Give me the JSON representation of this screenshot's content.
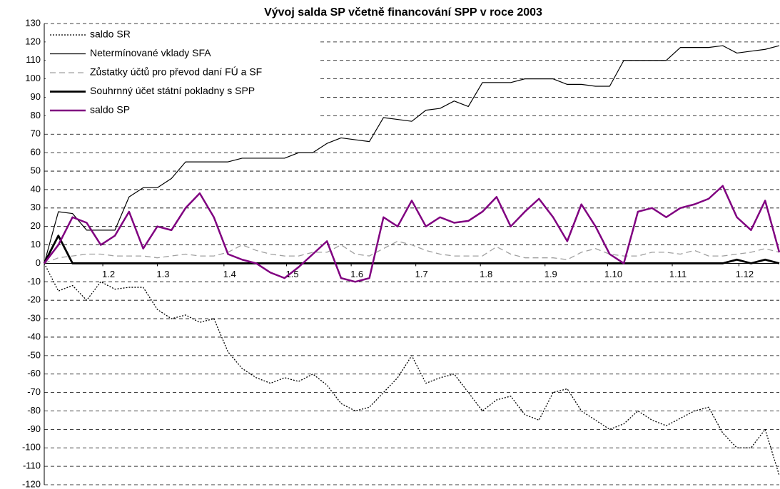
{
  "chart_data": {
    "type": "line",
    "title": "Vývoj salda SP včetně financování SPP v roce 2003",
    "x": [
      0,
      7,
      14,
      21,
      28,
      35,
      42,
      49,
      56,
      63,
      70,
      77,
      84,
      91,
      98,
      105,
      112,
      119,
      126,
      133,
      140,
      147,
      154,
      161,
      168,
      175,
      182,
      189,
      196,
      203,
      210,
      217,
      224,
      231,
      238,
      245,
      252,
      259,
      266,
      273,
      280,
      287,
      294,
      301,
      308,
      315,
      322,
      329,
      336,
      343,
      350,
      357,
      364
    ],
    "series": [
      {
        "name": "saldo SR",
        "color": "#000000",
        "style": "dotted",
        "width": 1.3,
        "values": [
          0,
          -15,
          -12,
          -20,
          -10,
          -14,
          -13,
          -13,
          -25,
          -30,
          -28,
          -32,
          -30,
          -48,
          -57,
          -62,
          -65,
          -62,
          -64,
          -60,
          -66,
          -76,
          -80,
          -78,
          -70,
          -62,
          -50,
          -65,
          -62,
          -60,
          -70,
          -80,
          -74,
          -72,
          -82,
          -85,
          -70,
          -68,
          -80,
          -85,
          -90,
          -87,
          -80,
          -85,
          -88,
          -84,
          -80,
          -78,
          -92,
          -100,
          -100,
          -90,
          -115
        ]
      },
      {
        "name": "Netermínované vklady SFA",
        "color": "#000000",
        "style": "solid",
        "width": 1.2,
        "values": [
          0,
          28,
          27,
          18,
          18,
          18,
          36,
          41,
          41,
          46,
          55,
          55,
          55,
          55,
          57,
          57,
          57,
          57,
          60,
          60,
          65,
          68,
          67,
          66,
          79,
          78,
          77,
          83,
          84,
          88,
          85,
          98,
          98,
          98,
          100,
          100,
          100,
          97,
          97,
          96,
          96,
          110,
          110,
          110,
          110,
          117,
          117,
          117,
          118,
          114,
          115,
          116,
          118
        ]
      },
      {
        "name": "Zůstatky účtů pro převod daní FÚ a SF",
        "color": "#a0a0a0",
        "style": "dashed",
        "width": 1.3,
        "values": [
          0,
          3,
          4,
          5,
          5,
          4,
          4,
          4,
          3,
          4,
          5,
          4,
          4,
          6,
          10,
          7,
          5,
          4,
          4,
          6,
          6,
          10,
          5,
          4,
          8,
          12,
          10,
          7,
          5,
          4,
          4,
          4,
          9,
          5,
          3,
          3,
          3,
          2,
          6,
          8,
          5,
          4,
          4,
          6,
          6,
          5,
          7,
          4,
          4,
          5,
          6,
          8,
          6
        ]
      },
      {
        "name": "Souhrnný účet státní pokladny s SPP",
        "color": "#000000",
        "style": "solid",
        "width": 2.8,
        "values": [
          0,
          15,
          0,
          0,
          0,
          0,
          0,
          0,
          0,
          0,
          0,
          0,
          0,
          0,
          0,
          0,
          0,
          0,
          0,
          0,
          0,
          0,
          0,
          0,
          0,
          0,
          0,
          0,
          0,
          0,
          0,
          0,
          0,
          0,
          0,
          0,
          0,
          0,
          0,
          0,
          0,
          0,
          0,
          0,
          0,
          0,
          0,
          0,
          0,
          2,
          0,
          2,
          0
        ]
      },
      {
        "name": "saldo SP",
        "color": "#800080",
        "style": "solid",
        "width": 2.5,
        "values": [
          0,
          10,
          25,
          22,
          10,
          15,
          28,
          8,
          20,
          18,
          30,
          38,
          25,
          5,
          2,
          0,
          -5,
          -8,
          -2,
          5,
          12,
          -8,
          -10,
          -8,
          25,
          20,
          34,
          20,
          25,
          22,
          23,
          28,
          36,
          20,
          28,
          35,
          25,
          12,
          32,
          20,
          5,
          0,
          28,
          30,
          25,
          30,
          32,
          35,
          42,
          25,
          18,
          34,
          6
        ]
      }
    ],
    "xlim": [
      0,
      364
    ],
    "xticks": [
      {
        "value": 29,
        "label": "1.2"
      },
      {
        "value": 56,
        "label": "1.3"
      },
      {
        "value": 89,
        "label": "1.4"
      },
      {
        "value": 120,
        "label": "1.5"
      },
      {
        "value": 152,
        "label": "1.6"
      },
      {
        "value": 184,
        "label": "1.7"
      },
      {
        "value": 216,
        "label": "1.8"
      },
      {
        "value": 248,
        "label": "1.9"
      },
      {
        "value": 279,
        "label": "1.10"
      },
      {
        "value": 311,
        "label": "1.11"
      },
      {
        "value": 344,
        "label": "1.12"
      }
    ],
    "ylim": [
      -120,
      130
    ],
    "yticks": [
      -120,
      -110,
      -100,
      -90,
      -80,
      -70,
      -60,
      -50,
      -40,
      -30,
      -20,
      -10,
      0,
      10,
      20,
      30,
      40,
      50,
      60,
      70,
      80,
      90,
      100,
      110,
      120,
      130
    ],
    "grid": true,
    "legend": "top-left"
  }
}
